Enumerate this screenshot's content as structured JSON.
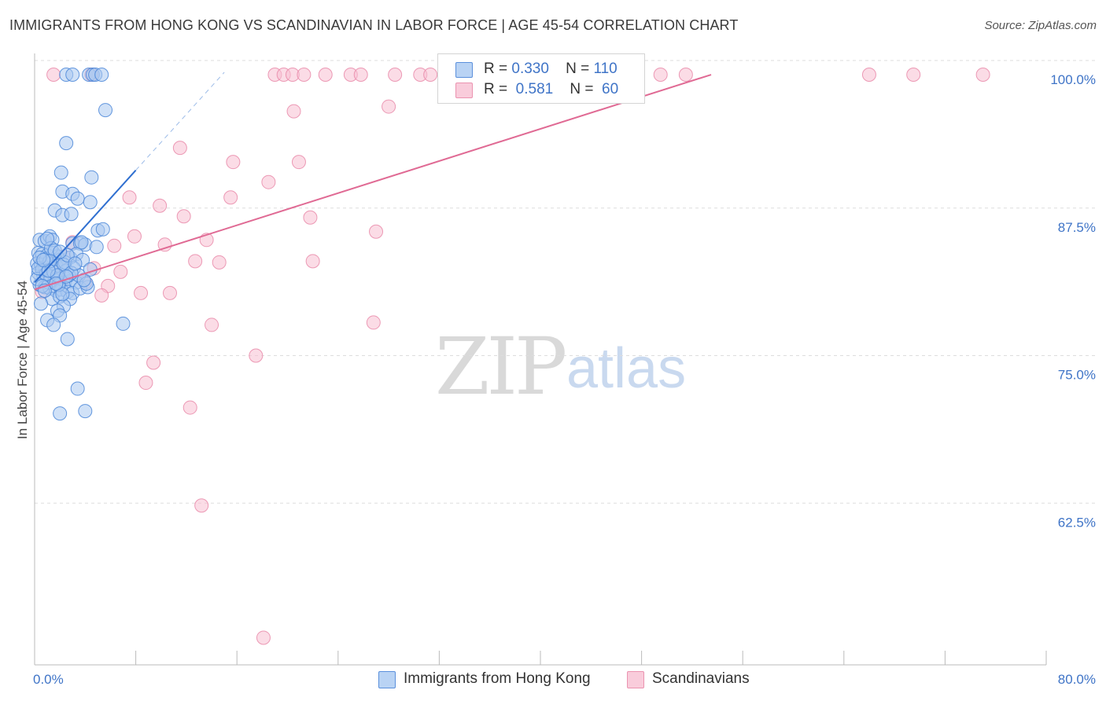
{
  "header": {
    "title": "IMMIGRANTS FROM HONG KONG VS SCANDINAVIAN IN LABOR FORCE | AGE 45-54 CORRELATION CHART",
    "source": "Source: ZipAtlas.com"
  },
  "watermark": {
    "part1": "ZIP",
    "part2": "atlas"
  },
  "legend": {
    "rows": [
      {
        "r_label": "R =",
        "r_value": "0.330",
        "n_label": "N =",
        "n_value": "110"
      },
      {
        "r_label": "R =",
        "r_value": "0.581",
        "n_label": "N =",
        "n_value": "60"
      }
    ]
  },
  "bottom_legend": {
    "items": [
      {
        "label": "Immigrants from Hong Kong"
      },
      {
        "label": "Scandinavians"
      }
    ]
  },
  "colors": {
    "blue_fill": "#a9c8f0",
    "blue_stroke": "#4a86d8",
    "blue_line": "#2f6fd0",
    "pink_fill": "#f7c0d2",
    "pink_stroke": "#e98aa9",
    "pink_line": "#e06a94",
    "tick_text": "#3f74c7",
    "grid": "#dddddd"
  },
  "chart_data": {
    "type": "scatter",
    "title": "IMMIGRANTS FROM HONG KONG VS SCANDINAVIAN IN LABOR FORCE | AGE 45-54 CORRELATION CHART",
    "xlabel": "",
    "ylabel": "In Labor Force | Age 45-54",
    "xlim": [
      0,
      80
    ],
    "ylim": [
      50,
      101
    ],
    "x_tick_labels": [
      {
        "value": 0,
        "label": "0.0%"
      },
      {
        "value": 80,
        "label": "80.0%"
      }
    ],
    "x_minor_ticks": [
      0,
      8,
      16,
      24,
      32,
      40,
      48,
      56,
      64,
      72,
      80
    ],
    "y_ticks": [
      {
        "value": 62.5,
        "label": "62.5%"
      },
      {
        "value": 75.0,
        "label": "75.0%"
      },
      {
        "value": 87.5,
        "label": "87.5%"
      },
      {
        "value": 100.0,
        "label": "100.0%"
      }
    ],
    "grid": true,
    "legend_position": "top-center",
    "series": [
      {
        "name": "Immigrants from Hong Kong",
        "color": "#a9c8f0",
        "points": [
          [
            2.5,
            100
          ],
          [
            3.0,
            100
          ],
          [
            4.3,
            100
          ],
          [
            4.6,
            100
          ],
          [
            4.8,
            100
          ],
          [
            5.3,
            100
          ],
          [
            5.6,
            97.0
          ],
          [
            2.5,
            94.2
          ],
          [
            2.1,
            91.7
          ],
          [
            4.5,
            91.3
          ],
          [
            2.2,
            90.1
          ],
          [
            3.0,
            89.9
          ],
          [
            3.4,
            89.5
          ],
          [
            4.4,
            89.2
          ],
          [
            1.6,
            88.5
          ],
          [
            2.2,
            88.1
          ],
          [
            2.9,
            88.2
          ],
          [
            5.0,
            86.8
          ],
          [
            5.4,
            86.9
          ],
          [
            0.4,
            86.0
          ],
          [
            0.8,
            85.9
          ],
          [
            1.2,
            86.3
          ],
          [
            1.4,
            86.0
          ],
          [
            3.0,
            85.7
          ],
          [
            3.6,
            85.7
          ],
          [
            4.0,
            85.6
          ],
          [
            4.9,
            85.4
          ],
          [
            0.3,
            84.9
          ],
          [
            0.6,
            84.8
          ],
          [
            1.0,
            84.7
          ],
          [
            1.5,
            84.9
          ],
          [
            1.8,
            84.6
          ],
          [
            2.0,
            84.3
          ],
          [
            2.8,
            84.5
          ],
          [
            3.3,
            84.8
          ],
          [
            3.8,
            84.3
          ],
          [
            0.2,
            84.0
          ],
          [
            0.5,
            83.9
          ],
          [
            0.8,
            83.7
          ],
          [
            1.1,
            84.0
          ],
          [
            1.4,
            83.6
          ],
          [
            1.7,
            83.8
          ],
          [
            2.1,
            83.7
          ],
          [
            2.5,
            83.4
          ],
          [
            3.1,
            83.6
          ],
          [
            0.3,
            83.2
          ],
          [
            0.7,
            83.0
          ],
          [
            1.0,
            82.8
          ],
          [
            1.3,
            82.9
          ],
          [
            1.6,
            82.6
          ],
          [
            2.0,
            82.7
          ],
          [
            2.4,
            82.4
          ],
          [
            2.8,
            82.5
          ],
          [
            3.3,
            82.4
          ],
          [
            0.4,
            82.2
          ],
          [
            0.8,
            82.0
          ],
          [
            1.2,
            81.9
          ],
          [
            1.7,
            81.7
          ],
          [
            2.1,
            81.8
          ],
          [
            2.6,
            81.6
          ],
          [
            3.0,
            81.5
          ],
          [
            3.6,
            81.9
          ],
          [
            4.2,
            82.0
          ],
          [
            1.4,
            81.0
          ],
          [
            2.0,
            81.2
          ],
          [
            2.8,
            81.0
          ],
          [
            0.5,
            80.6
          ],
          [
            2.3,
            80.4
          ],
          [
            1.8,
            80.0
          ],
          [
            2.0,
            79.6
          ],
          [
            1.0,
            79.2
          ],
          [
            1.5,
            78.8
          ],
          [
            7.0,
            78.9
          ],
          [
            2.6,
            77.6
          ],
          [
            3.4,
            73.4
          ],
          [
            2.0,
            71.3
          ],
          [
            4.0,
            71.5
          ],
          [
            0.6,
            83.5
          ],
          [
            0.9,
            84.4
          ],
          [
            1.3,
            85.3
          ],
          [
            1.6,
            85.1
          ],
          [
            2.4,
            84.1
          ],
          [
            2.7,
            83.0
          ],
          [
            3.5,
            83.0
          ],
          [
            4.1,
            82.3
          ],
          [
            1.1,
            82.4
          ],
          [
            1.9,
            82.2
          ],
          [
            2.2,
            81.4
          ],
          [
            0.2,
            82.7
          ],
          [
            0.9,
            83.1
          ],
          [
            1.5,
            83.3
          ],
          [
            2.3,
            83.9
          ],
          [
            2.6,
            84.7
          ],
          [
            3.7,
            85.8
          ],
          [
            1.0,
            86.1
          ],
          [
            0.3,
            83.6
          ],
          [
            0.6,
            82.1
          ],
          [
            1.8,
            83.0
          ],
          [
            2.9,
            83.2
          ],
          [
            3.2,
            84.0
          ],
          [
            1.2,
            84.2
          ],
          [
            0.4,
            84.5
          ],
          [
            2.0,
            85.0
          ],
          [
            1.7,
            82.3
          ],
          [
            0.8,
            81.7
          ],
          [
            2.5,
            82.9
          ],
          [
            3.9,
            82.6
          ],
          [
            4.4,
            83.5
          ],
          [
            1.1,
            83.4
          ],
          [
            0.7,
            84.3
          ]
        ],
        "trend": {
          "x": [
            0,
            8
          ],
          "y": [
            82.4,
            91.9
          ]
        },
        "trend_dashed": {
          "x": [
            8,
            15
          ],
          "y": [
            91.9,
            100.2
          ]
        }
      },
      {
        "name": "Scandinavians",
        "color": "#f7c0d2",
        "points": [
          [
            1.5,
            100
          ],
          [
            4.5,
            100
          ],
          [
            19.0,
            100
          ],
          [
            19.7,
            100
          ],
          [
            20.4,
            100
          ],
          [
            21.3,
            100
          ],
          [
            23.0,
            100
          ],
          [
            25.0,
            100
          ],
          [
            25.8,
            100
          ],
          [
            28.5,
            100
          ],
          [
            30.5,
            100
          ],
          [
            31.3,
            100
          ],
          [
            33.5,
            100
          ],
          [
            36.0,
            100
          ],
          [
            37.0,
            100
          ],
          [
            40.0,
            100
          ],
          [
            44.5,
            100
          ],
          [
            49.5,
            100
          ],
          [
            51.5,
            100
          ],
          [
            66.0,
            100
          ],
          [
            69.5,
            100
          ],
          [
            75.0,
            100
          ],
          [
            28.0,
            97.3
          ],
          [
            20.5,
            96.9
          ],
          [
            11.5,
            93.8
          ],
          [
            15.7,
            92.6
          ],
          [
            20.9,
            92.6
          ],
          [
            18.5,
            90.9
          ],
          [
            7.5,
            89.6
          ],
          [
            15.5,
            89.6
          ],
          [
            9.9,
            88.9
          ],
          [
            11.8,
            88.0
          ],
          [
            21.8,
            87.9
          ],
          [
            27.0,
            86.7
          ],
          [
            7.9,
            86.3
          ],
          [
            13.6,
            86.0
          ],
          [
            3.0,
            85.8
          ],
          [
            6.3,
            85.5
          ],
          [
            10.3,
            85.6
          ],
          [
            12.7,
            84.2
          ],
          [
            14.6,
            84.1
          ],
          [
            22.0,
            84.2
          ],
          [
            4.7,
            83.6
          ],
          [
            6.8,
            83.3
          ],
          [
            1.8,
            82.9
          ],
          [
            4.0,
            82.4
          ],
          [
            5.8,
            82.1
          ],
          [
            0.6,
            81.6
          ],
          [
            5.3,
            81.3
          ],
          [
            8.4,
            81.5
          ],
          [
            10.7,
            81.5
          ],
          [
            14.0,
            78.8
          ],
          [
            26.8,
            79.0
          ],
          [
            17.5,
            76.2
          ],
          [
            9.4,
            75.6
          ],
          [
            8.8,
            73.9
          ],
          [
            12.3,
            71.8
          ],
          [
            13.2,
            63.5
          ],
          [
            18.1,
            52.3
          ],
          [
            2.3,
            84.6
          ]
        ],
        "trend": {
          "x": [
            0,
            53.5
          ],
          "y": [
            81.8,
            100.0
          ]
        }
      }
    ]
  }
}
